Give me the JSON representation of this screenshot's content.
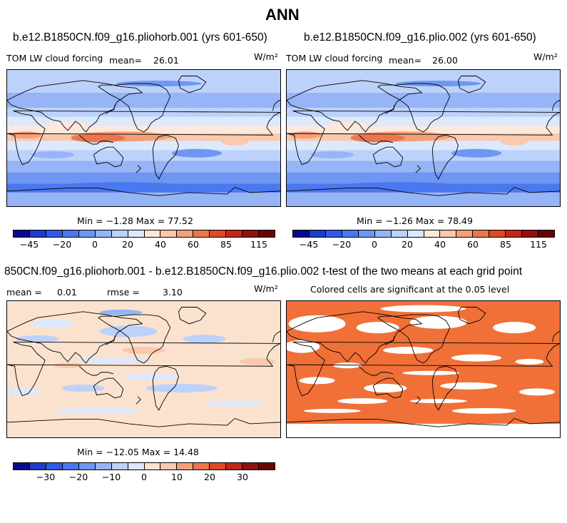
{
  "figure_title": "ANN",
  "chart_data": [
    {
      "type": "heatmap",
      "title": "b.e12.B1850CN.f09_g16.pliohorb.001 (yrs 601-650)",
      "variable": "TOM LW cloud forcing",
      "mean_label": "mean=",
      "mean": "26.01",
      "units": "W/m²",
      "min_max_text": "Min =  −1.28 Max =  77.52",
      "min": -1.28,
      "max": 77.52,
      "colorbar_levels": [
        -45,
        -30,
        -20,
        -10,
        0,
        10,
        20,
        30,
        40,
        50,
        60,
        70,
        85,
        100,
        115
      ],
      "colorbar_tick_labels": [
        "−45",
        "−20",
        "0",
        "20",
        "40",
        "60",
        "85",
        "115"
      ]
    },
    {
      "type": "heatmap",
      "title": "b.e12.B1850CN.f09_g16.plio.002 (yrs 601-650)",
      "variable": "TOM LW cloud forcing",
      "mean_label": "mean=",
      "mean": "26.00",
      "units": "W/m²",
      "min_max_text": "Min =  −1.26 Max =  78.49",
      "min": -1.26,
      "max": 78.49,
      "colorbar_levels": [
        -45,
        -30,
        -20,
        -10,
        0,
        10,
        20,
        30,
        40,
        50,
        60,
        70,
        85,
        100,
        115
      ],
      "colorbar_tick_labels": [
        "−45",
        "−20",
        "0",
        "20",
        "40",
        "60",
        "85",
        "115"
      ]
    },
    {
      "type": "heatmap",
      "title": "850CN.f09_g16.pliohorb.001 - b.e12.B1850CN.f09_g16.plio.002",
      "mean_label": "mean =",
      "mean": "0.01",
      "rmse_label": "rmse =",
      "rmse": "3.10",
      "units": "W/m²",
      "min_max_text": "Min = −12.05 Max =  14.48",
      "min": -12.05,
      "max": 14.48,
      "colorbar_levels": [
        -35,
        -30,
        -25,
        -20,
        -15,
        -10,
        -5,
        0,
        5,
        10,
        15,
        20,
        25,
        30,
        35
      ],
      "colorbar_tick_labels": [
        "−30",
        "−20",
        "−10",
        "0",
        "10",
        "20",
        "30"
      ]
    },
    {
      "type": "heatmap",
      "title": "t-test of the two means at each grid point",
      "subtitle": "Colored cells are significant at the 0.05 level"
    }
  ],
  "colors": {
    "scale": [
      "#0a0a8c",
      "#1e3cc8",
      "#2f5ae6",
      "#4a78f0",
      "#6e96f2",
      "#96b4f6",
      "#bcd2fa",
      "#dce8fc",
      "#fde8dc",
      "#f9c8ae",
      "#f2a07a",
      "#ea7650",
      "#dc4a28",
      "#c0281a",
      "#901010",
      "#6a0404"
    ],
    "diff_scale": [
      "#0a0a8c",
      "#1e3cc8",
      "#2f5ae6",
      "#4a78f0",
      "#6e96f2",
      "#96b4f6",
      "#bcd2fa",
      "#dce8fc",
      "#fbe2cf",
      "#f9c8ae",
      "#f2a07a",
      "#ea7650",
      "#dc4a28",
      "#c0281a",
      "#901010",
      "#6a0404"
    ],
    "significance": "#f07038",
    "coastline": "#000000"
  }
}
